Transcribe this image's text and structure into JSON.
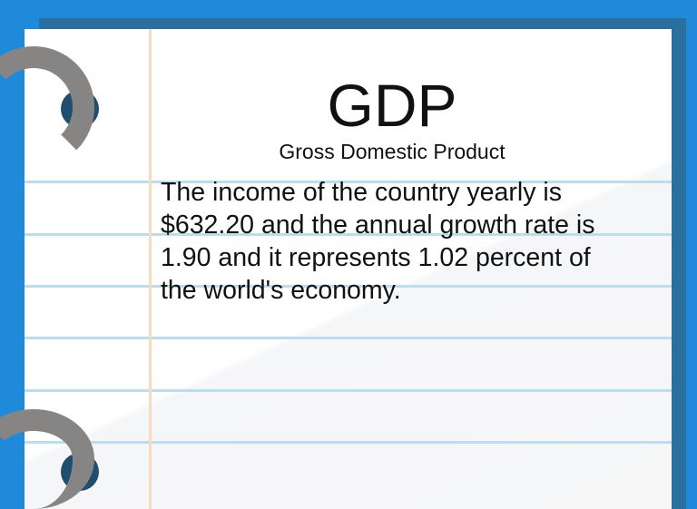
{
  "title": "GDP",
  "subtitle": "Gross Domestic Product",
  "body": "The income of the country yearly is $632.20 and the annual growth rate is 1.90 and it represents 1.02 percent of the world's economy.",
  "colors": {
    "background": "#1f8ad9",
    "paper": "#ffffff",
    "rule": "#b9def0",
    "margin": "#f8dcc0",
    "ring": "#878584"
  }
}
